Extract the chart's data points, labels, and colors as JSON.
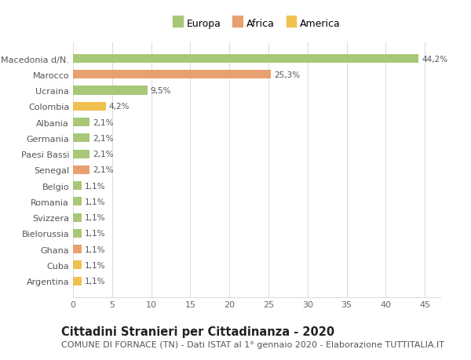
{
  "categories": [
    "Argentina",
    "Cuba",
    "Ghana",
    "Bielorussia",
    "Svizzera",
    "Romania",
    "Belgio",
    "Senegal",
    "Paesi Bassi",
    "Germania",
    "Albania",
    "Colombia",
    "Ucraina",
    "Marocco",
    "Macedonia d/N."
  ],
  "values": [
    1.1,
    1.1,
    1.1,
    1.1,
    1.1,
    1.1,
    1.1,
    2.1,
    2.1,
    2.1,
    2.1,
    4.2,
    9.5,
    25.3,
    44.2
  ],
  "labels": [
    "1,1%",
    "1,1%",
    "1,1%",
    "1,1%",
    "1,1%",
    "1,1%",
    "1,1%",
    "2,1%",
    "2,1%",
    "2,1%",
    "2,1%",
    "4,2%",
    "9,5%",
    "25,3%",
    "44,2%"
  ],
  "colors": [
    "#f0c050",
    "#f0c050",
    "#e8a070",
    "#a8c878",
    "#a8c878",
    "#a8c878",
    "#a8c878",
    "#e8a070",
    "#a8c878",
    "#a8c878",
    "#a8c878",
    "#f0c050",
    "#a8c878",
    "#e8a070",
    "#a8c878"
  ],
  "legend_labels": [
    "Europa",
    "Africa",
    "America"
  ],
  "legend_colors": [
    "#a8c878",
    "#e8a070",
    "#f0c050"
  ],
  "title": "Cittadini Stranieri per Cittadinanza - 2020",
  "subtitle": "COMUNE DI FORNACE (TN) - Dati ISTAT al 1° gennaio 2020 - Elaborazione TUTTITALIA.IT",
  "xlim": [
    0,
    47
  ],
  "xticks": [
    0,
    5,
    10,
    15,
    20,
    25,
    30,
    35,
    40,
    45
  ],
  "plot_bg_color": "#ffffff",
  "fig_bg_color": "#ffffff",
  "grid_color": "#dddddd",
  "bar_height": 0.55,
  "title_fontsize": 10.5,
  "subtitle_fontsize": 8,
  "label_fontsize": 7.5,
  "tick_fontsize": 8,
  "legend_fontsize": 9
}
